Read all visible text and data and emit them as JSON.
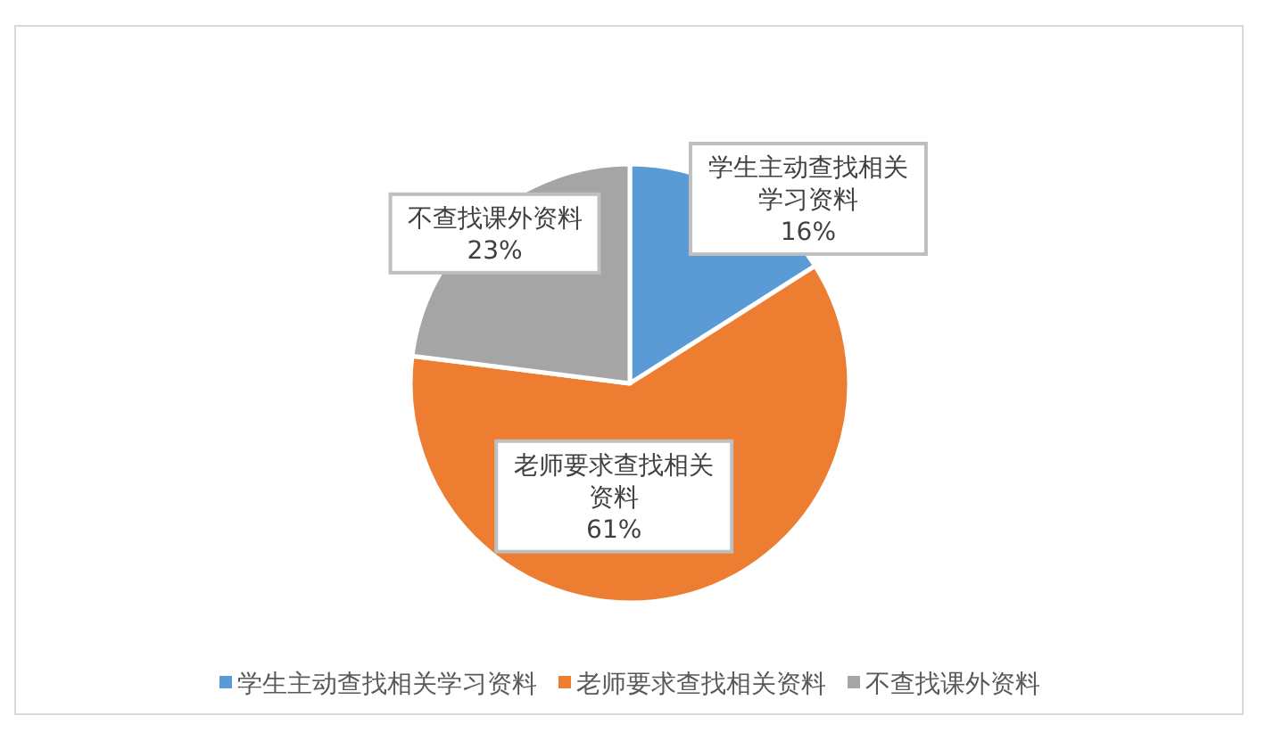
{
  "chart_data": {
    "type": "pie",
    "categories": [
      "学生主动查找相关学习资料",
      "老师要求查找相关资料",
      "不查找课外资料"
    ],
    "values": [
      16,
      61,
      23
    ],
    "colors": [
      "#5b9bd5",
      "#ed7d31",
      "#a5a5a5"
    ],
    "value_labels": [
      "学生主动查找相关学习资料\n16%",
      "老师要求查找相关资料\n61%",
      "23%"
    ],
    "legend": "bottom"
  }
}
